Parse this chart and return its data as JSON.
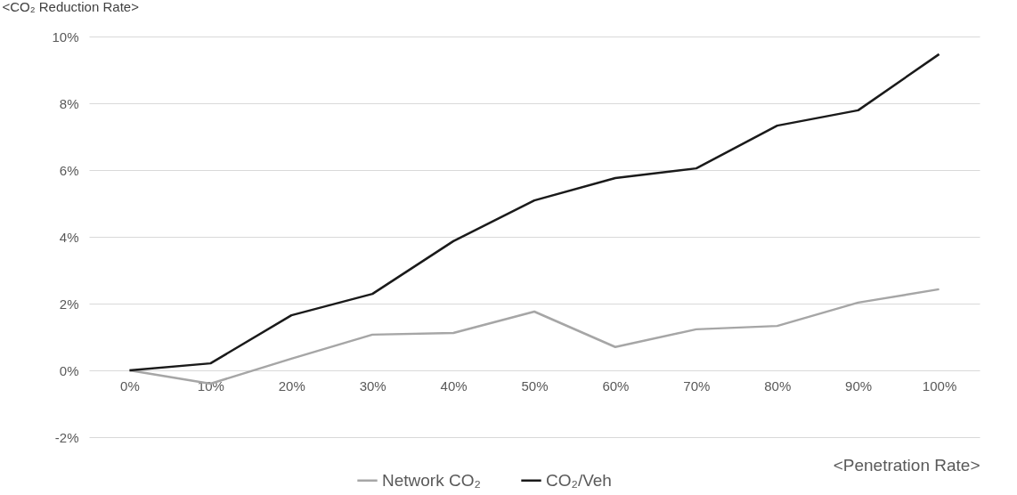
{
  "chart_data": {
    "type": "line",
    "ylabel": "<CO₂ Reduction Rate>",
    "xlabel": "<Penetration Rate>",
    "categories": [
      "0%",
      "10%",
      "20%",
      "30%",
      "40%",
      "50%",
      "60%",
      "70%",
      "80%",
      "90%",
      "100%"
    ],
    "series": [
      {
        "name": "Network CO₂",
        "color": "#a6a6a6",
        "values": [
          0,
          -0.4,
          0.35,
          1.07,
          1.12,
          1.76,
          0.7,
          1.23,
          1.33,
          2.03,
          2.43
        ]
      },
      {
        "name": "CO₂/Veh",
        "color": "#1a1a1a",
        "values": [
          0,
          0.21,
          1.65,
          2.29,
          3.87,
          5.09,
          5.76,
          6.05,
          7.33,
          7.79,
          9.47
        ]
      }
    ],
    "ylim": [
      -2,
      10
    ],
    "yticks": [
      {
        "value": -2,
        "label": "-2%"
      },
      {
        "value": 0,
        "label": "0%"
      },
      {
        "value": 2,
        "label": "2%"
      },
      {
        "value": 4,
        "label": "4%"
      },
      {
        "value": 6,
        "label": "6%"
      },
      {
        "value": 8,
        "label": "8%"
      },
      {
        "value": 10,
        "label": "10%"
      }
    ],
    "grid": "y",
    "legend": "bottom",
    "marker": "none",
    "line_style": "solid"
  }
}
